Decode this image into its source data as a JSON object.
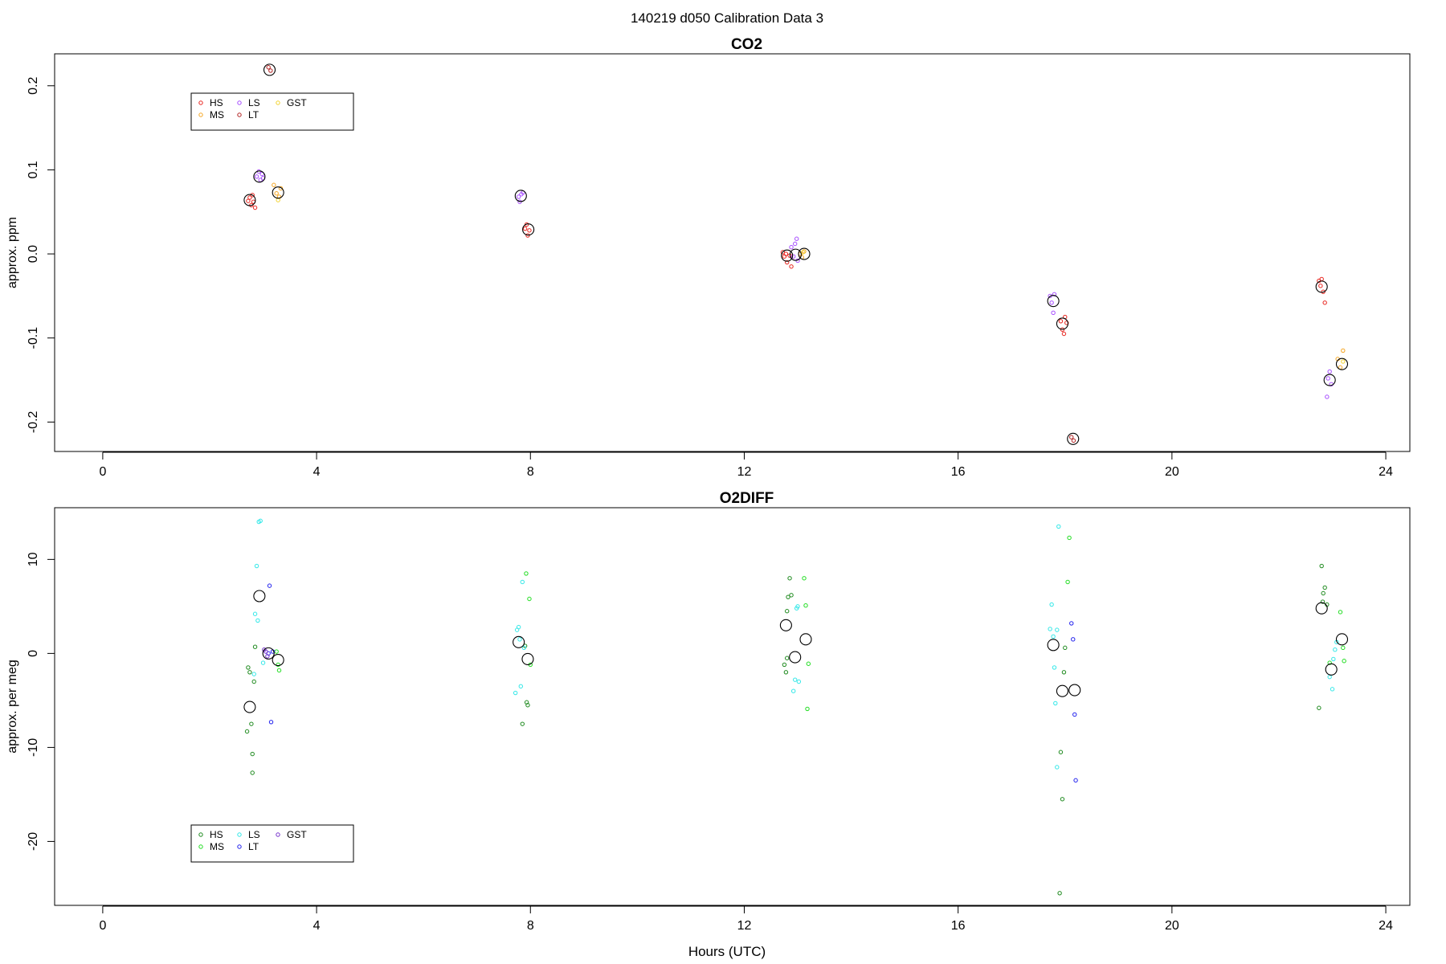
{
  "figure": {
    "title": "140219   d050   Calibration Data 3",
    "xlabel": "Hours (UTC)"
  },
  "colors": {
    "HS_co2": "#e8251f",
    "MS_co2": "#f5a623",
    "LS_co2": "#a64dff",
    "LT_co2": "#b22222",
    "GST_co2": "#f2d22e",
    "HS_o2": "#1e8a1e",
    "MS_o2": "#22dd22",
    "LS_o2": "#33e8e8",
    "LT_o2": "#2222ee",
    "GST_o2": "#7733cc",
    "mean": "#000000"
  },
  "chart_data": [
    {
      "type": "scatter",
      "title": "CO2",
      "xlabel": "",
      "ylabel": "approx. ppm",
      "xlim": [
        -0.9,
        24.45
      ],
      "ylim": [
        -0.235,
        0.238
      ],
      "xticks": [
        0,
        4,
        8,
        12,
        16,
        20,
        24
      ],
      "yticks": [
        -0.2,
        -0.1,
        0.0,
        0.1,
        0.2
      ],
      "ytick_labels": [
        "-0.2",
        "-0.1",
        "0.0",
        "0.1",
        "0.2"
      ],
      "grid": false,
      "legend_position": "top-left",
      "legend": [
        {
          "label": "HS",
          "color_key": "HS_co2"
        },
        {
          "label": "MS",
          "color_key": "MS_co2"
        },
        {
          "label": "LS",
          "color_key": "LS_co2"
        },
        {
          "label": "LT",
          "color_key": "LT_co2"
        },
        {
          "label": "GST",
          "color_key": "GST_co2"
        }
      ],
      "series": [
        {
          "key": "HS",
          "color_key": "HS_co2",
          "points": [
            [
              2.72,
              0.063
            ],
            [
              2.75,
              0.067
            ],
            [
              2.78,
              0.058
            ],
            [
              2.8,
              0.07
            ],
            [
              2.82,
              0.062
            ],
            [
              2.85,
              0.055
            ],
            [
              7.9,
              0.03
            ],
            [
              7.93,
              0.035
            ],
            [
              7.95,
              0.022
            ],
            [
              7.98,
              0.028
            ],
            [
              12.72,
              0.002
            ],
            [
              12.75,
              -0.003
            ],
            [
              12.78,
              0.0
            ],
            [
              12.8,
              -0.01
            ],
            [
              12.85,
              -0.002
            ],
            [
              12.88,
              -0.015
            ],
            [
              17.92,
              -0.08
            ],
            [
              17.95,
              -0.09
            ],
            [
              17.98,
              -0.095
            ],
            [
              18.0,
              -0.075
            ],
            [
              18.03,
              -0.082
            ],
            [
              22.75,
              -0.032
            ],
            [
              22.78,
              -0.038
            ],
            [
              22.8,
              -0.03
            ],
            [
              22.83,
              -0.045
            ],
            [
              22.86,
              -0.058
            ]
          ]
        },
        {
          "key": "MS",
          "color_key": "MS_co2",
          "points": [
            [
              3.2,
              0.082
            ],
            [
              3.25,
              0.072
            ],
            [
              3.3,
              0.068
            ],
            [
              3.33,
              0.078
            ],
            [
              13.05,
              0.0
            ],
            [
              13.08,
              -0.004
            ],
            [
              13.12,
              0.003
            ],
            [
              23.1,
              -0.125
            ],
            [
              23.15,
              -0.135
            ],
            [
              23.2,
              -0.115
            ]
          ]
        },
        {
          "key": "LS",
          "color_key": "LS_co2",
          "points": [
            [
              2.88,
              0.092
            ],
            [
              2.92,
              0.098
            ],
            [
              2.95,
              0.088
            ],
            [
              2.98,
              0.095
            ],
            [
              3.0,
              0.09
            ],
            [
              7.78,
              0.068
            ],
            [
              7.8,
              0.062
            ],
            [
              7.83,
              0.071
            ],
            [
              7.86,
              0.073
            ],
            [
              12.88,
              0.008
            ],
            [
              12.92,
              -0.003
            ],
            [
              12.95,
              0.012
            ],
            [
              12.98,
              0.018
            ],
            [
              13.0,
              -0.008
            ],
            [
              17.72,
              -0.05
            ],
            [
              17.75,
              -0.058
            ],
            [
              17.78,
              -0.07
            ],
            [
              17.8,
              -0.048
            ],
            [
              22.92,
              -0.148
            ],
            [
              22.95,
              -0.14
            ],
            [
              22.98,
              -0.155
            ],
            [
              22.9,
              -0.17
            ]
          ]
        },
        {
          "key": "LT",
          "color_key": "LT_co2",
          "points": [
            [
              3.1,
              0.222
            ],
            [
              3.14,
              0.218
            ],
            [
              18.12,
              -0.218
            ],
            [
              18.16,
              -0.222
            ]
          ]
        },
        {
          "key": "GST",
          "color_key": "GST_co2",
          "points": [
            [
              3.28,
              0.064
            ],
            [
              13.1,
              0.002
            ],
            [
              23.2,
              -0.128
            ]
          ]
        },
        {
          "key": "mean",
          "color_key": "mean",
          "marker": "large",
          "points": [
            [
              2.75,
              0.064
            ],
            [
              2.93,
              0.092
            ],
            [
              3.28,
              0.073
            ],
            [
              3.12,
              0.219
            ],
            [
              7.82,
              0.069
            ],
            [
              7.96,
              0.029
            ],
            [
              12.8,
              -0.002
            ],
            [
              12.96,
              -0.001
            ],
            [
              13.12,
              0.0
            ],
            [
              17.78,
              -0.056
            ],
            [
              17.95,
              -0.083
            ],
            [
              18.15,
              -0.22
            ],
            [
              22.8,
              -0.039
            ],
            [
              22.95,
              -0.15
            ],
            [
              23.18,
              -0.131
            ]
          ]
        }
      ]
    },
    {
      "type": "scatter",
      "title": "O2DIFF",
      "xlabel": "Hours (UTC)",
      "ylabel": "approx. per meg",
      "xlim": [
        -0.9,
        24.45
      ],
      "ylim": [
        -26.8,
        15.5
      ],
      "xticks": [
        0,
        4,
        8,
        12,
        16,
        20,
        24
      ],
      "yticks": [
        -20,
        -10,
        0,
        10
      ],
      "ytick_labels": [
        "-20",
        "-10",
        "0",
        "10"
      ],
      "grid": false,
      "legend_position": "bottom-left",
      "legend": [
        {
          "label": "HS",
          "color_key": "HS_o2"
        },
        {
          "label": "MS",
          "color_key": "MS_o2"
        },
        {
          "label": "LS",
          "color_key": "LS_o2"
        },
        {
          "label": "LT",
          "color_key": "LT_o2"
        },
        {
          "label": "GST",
          "color_key": "GST_o2"
        }
      ],
      "series": [
        {
          "key": "HS",
          "color_key": "HS_o2",
          "points": [
            [
              2.7,
              -8.3
            ],
            [
              2.72,
              -1.5
            ],
            [
              2.75,
              -2.0
            ],
            [
              2.78,
              -7.5
            ],
            [
              2.8,
              -10.7
            ],
            [
              2.8,
              -12.7
            ],
            [
              2.83,
              -3.0
            ],
            [
              2.85,
              0.7
            ],
            [
              7.9,
              0.8
            ],
            [
              7.93,
              -5.2
            ],
            [
              7.95,
              -5.5
            ],
            [
              7.85,
              -7.5
            ],
            [
              12.75,
              -1.2
            ],
            [
              12.78,
              -2.0
            ],
            [
              12.8,
              4.5
            ],
            [
              12.82,
              6.0
            ],
            [
              12.85,
              8.0
            ],
            [
              12.8,
              -0.5
            ],
            [
              12.88,
              6.2
            ],
            [
              17.92,
              -10.5
            ],
            [
              17.95,
              -15.5
            ],
            [
              17.9,
              -25.5
            ],
            [
              18.0,
              0.6
            ],
            [
              17.98,
              -2.0
            ],
            [
              22.75,
              -5.8
            ],
            [
              22.8,
              9.3
            ],
            [
              22.83,
              6.4
            ],
            [
              22.86,
              7.0
            ],
            [
              22.9,
              5.2
            ],
            [
              22.82,
              5.5
            ]
          ]
        },
        {
          "key": "MS",
          "color_key": "MS_o2",
          "points": [
            [
              3.25,
              0.2
            ],
            [
              3.28,
              -1.2
            ],
            [
              3.3,
              -1.8
            ],
            [
              7.92,
              8.5
            ],
            [
              7.98,
              5.8
            ],
            [
              8.0,
              -1.2
            ],
            [
              13.12,
              8.0
            ],
            [
              13.15,
              5.1
            ],
            [
              13.18,
              -5.9
            ],
            [
              13.2,
              -1.1
            ],
            [
              18.05,
              7.6
            ],
            [
              18.08,
              12.3
            ],
            [
              23.15,
              4.4
            ],
            [
              23.2,
              0.6
            ],
            [
              23.22,
              -0.8
            ],
            [
              22.95,
              -1.0
            ]
          ]
        },
        {
          "key": "LS",
          "color_key": "LS_o2",
          "points": [
            [
              2.92,
              14.0
            ],
            [
              2.95,
              14.1
            ],
            [
              2.88,
              9.3
            ],
            [
              2.85,
              4.2
            ],
            [
              2.9,
              3.5
            ],
            [
              2.83,
              -2.2
            ],
            [
              3.0,
              -1.0
            ],
            [
              7.72,
              -4.2
            ],
            [
              7.75,
              2.5
            ],
            [
              7.78,
              2.8
            ],
            [
              7.8,
              1.5
            ],
            [
              7.82,
              -3.5
            ],
            [
              7.85,
              7.6
            ],
            [
              7.88,
              0.6
            ],
            [
              12.92,
              -4.0
            ],
            [
              12.95,
              -2.8
            ],
            [
              12.98,
              4.8
            ],
            [
              13.0,
              5.0
            ],
            [
              13.02,
              -3.0
            ],
            [
              17.72,
              2.6
            ],
            [
              17.75,
              5.2
            ],
            [
              17.78,
              1.8
            ],
            [
              17.8,
              -1.5
            ],
            [
              17.82,
              -5.3
            ],
            [
              17.85,
              -12.1
            ],
            [
              17.88,
              13.5
            ],
            [
              17.85,
              2.5
            ],
            [
              22.95,
              -2.5
            ],
            [
              23.0,
              -3.8
            ],
            [
              23.05,
              0.4
            ],
            [
              23.02,
              -0.6
            ],
            [
              23.08,
              1.2
            ]
          ]
        },
        {
          "key": "LT",
          "color_key": "LT_o2",
          "points": [
            [
              3.12,
              7.2
            ],
            [
              3.15,
              -7.3
            ],
            [
              3.1,
              0.0
            ],
            [
              3.18,
              0.2
            ],
            [
              18.12,
              3.2
            ],
            [
              18.15,
              1.5
            ],
            [
              18.18,
              -6.5
            ],
            [
              18.2,
              -13.5
            ]
          ]
        },
        {
          "key": "GST",
          "color_key": "GST_o2",
          "points": [
            [
              3.05,
              0.2
            ],
            [
              3.08,
              -0.3
            ],
            [
              3.02,
              0.4
            ]
          ]
        },
        {
          "key": "mean",
          "color_key": "mean",
          "marker": "large",
          "points": [
            [
              2.75,
              -5.7
            ],
            [
              2.93,
              6.1
            ],
            [
              3.1,
              0.0
            ],
            [
              3.28,
              -0.7
            ],
            [
              7.78,
              1.2
            ],
            [
              7.95,
              -0.6
            ],
            [
              12.78,
              3.0
            ],
            [
              12.95,
              -0.4
            ],
            [
              13.15,
              1.5
            ],
            [
              17.78,
              0.9
            ],
            [
              17.95,
              -4.0
            ],
            [
              18.18,
              -3.9
            ],
            [
              22.8,
              4.8
            ],
            [
              22.98,
              -1.7
            ],
            [
              23.18,
              1.5
            ]
          ]
        }
      ]
    }
  ]
}
